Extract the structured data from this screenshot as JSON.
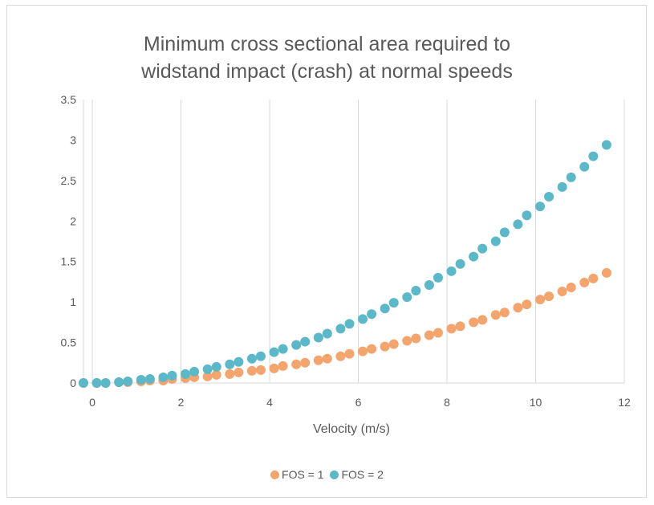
{
  "chart_data": {
    "type": "scatter",
    "title_lines": [
      "Minimum cross sectional area required to",
      "widstand impact (crash) at normal speeds"
    ],
    "xlabel": "Velocity (m/s)",
    "ylabel": "",
    "xlim": [
      -0.2,
      12
    ],
    "ylim": [
      0,
      3.5
    ],
    "x_ticks": [
      "0",
      "2",
      "4",
      "6",
      "8",
      "10",
      "12"
    ],
    "y_ticks": [
      "0",
      "0.5",
      "1",
      "1.5",
      "2",
      "2.5",
      "3",
      "3.5"
    ],
    "grid": "vertical",
    "legend_position": "bottom",
    "series": [
      {
        "name": "FOS = 1",
        "color": "#f4a46d",
        "x": [
          -0.2,
          0.1,
          0.3,
          0.6,
          0.8,
          1.1,
          1.3,
          1.6,
          1.8,
          2.1,
          2.3,
          2.6,
          2.8,
          3.1,
          3.3,
          3.6,
          3.8,
          4.1,
          4.3,
          4.6,
          4.8,
          5.1,
          5.3,
          5.6,
          5.8,
          6.1,
          6.3,
          6.6,
          6.8,
          7.1,
          7.3,
          7.6,
          7.8,
          8.1,
          8.3,
          8.6,
          8.8,
          9.1,
          9.3,
          9.6,
          9.8,
          10.1,
          10.3,
          10.6,
          10.8,
          11.1,
          11.3,
          11.6
        ],
        "y": [
          0.0,
          0.0,
          0.0,
          0.01,
          0.01,
          0.02,
          0.03,
          0.03,
          0.05,
          0.06,
          0.07,
          0.08,
          0.1,
          0.11,
          0.13,
          0.15,
          0.16,
          0.18,
          0.21,
          0.23,
          0.25,
          0.28,
          0.3,
          0.33,
          0.36,
          0.39,
          0.42,
          0.45,
          0.48,
          0.52,
          0.55,
          0.59,
          0.62,
          0.67,
          0.7,
          0.75,
          0.78,
          0.84,
          0.87,
          0.93,
          0.97,
          1.03,
          1.07,
          1.13,
          1.18,
          1.24,
          1.29,
          1.36
        ]
      },
      {
        "name": "FOS = 2",
        "color": "#5bb8c8",
        "x": [
          -0.2,
          0.1,
          0.3,
          0.6,
          0.8,
          1.1,
          1.3,
          1.6,
          1.8,
          2.1,
          2.3,
          2.6,
          2.8,
          3.1,
          3.3,
          3.6,
          3.8,
          4.1,
          4.3,
          4.6,
          4.8,
          5.1,
          5.3,
          5.6,
          5.8,
          6.1,
          6.3,
          6.6,
          6.8,
          7.1,
          7.3,
          7.6,
          7.8,
          8.1,
          8.3,
          8.6,
          8.8,
          9.1,
          9.3,
          9.6,
          9.8,
          10.1,
          10.3,
          10.6,
          10.8,
          11.1,
          11.3,
          11.6
        ],
        "y": [
          0.0,
          0.0,
          0.0,
          0.01,
          0.02,
          0.04,
          0.05,
          0.07,
          0.09,
          0.11,
          0.14,
          0.17,
          0.2,
          0.23,
          0.26,
          0.3,
          0.33,
          0.38,
          0.42,
          0.47,
          0.51,
          0.56,
          0.61,
          0.67,
          0.73,
          0.79,
          0.85,
          0.92,
          0.99,
          1.06,
          1.14,
          1.21,
          1.3,
          1.38,
          1.47,
          1.56,
          1.66,
          1.75,
          1.86,
          1.96,
          2.07,
          2.18,
          2.3,
          2.42,
          2.54,
          2.67,
          2.8,
          2.94
        ]
      }
    ]
  }
}
